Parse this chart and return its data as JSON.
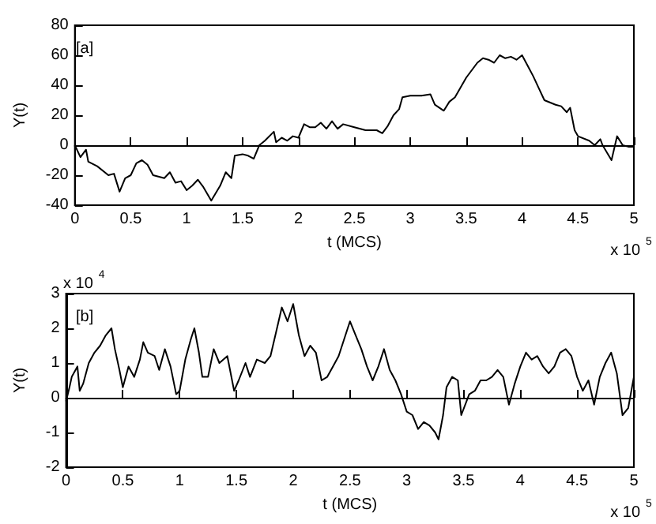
{
  "chart_data": [
    {
      "type": "line",
      "xlabel": "t (MCS)",
      "ylabel": "Y(t)",
      "annotations": [
        "[a]",
        "x 10$^{5}$"
      ],
      "xlim": [
        0,
        5
      ],
      "xticks": [
        0,
        0.5,
        1,
        1.5,
        2,
        2.5,
        3,
        3.5,
        4,
        4.5,
        5
      ],
      "ylim": [
        -40,
        80
      ],
      "yticks": [
        -40,
        -20,
        0,
        20,
        40,
        60,
        80
      ],
      "color": "#000000",
      "x": [
        0,
        0.05,
        0.1,
        0.12,
        0.2,
        0.3,
        0.35,
        0.4,
        0.45,
        0.5,
        0.55,
        0.6,
        0.65,
        0.7,
        0.8,
        0.85,
        0.9,
        0.95,
        1.0,
        1.05,
        1.1,
        1.15,
        1.22,
        1.3,
        1.35,
        1.4,
        1.43,
        1.5,
        1.55,
        1.6,
        1.65,
        1.7,
        1.78,
        1.8,
        1.85,
        1.9,
        1.95,
        2.0,
        2.05,
        2.1,
        2.15,
        2.2,
        2.25,
        2.3,
        2.35,
        2.4,
        2.5,
        2.6,
        2.7,
        2.75,
        2.8,
        2.85,
        2.9,
        2.93,
        3.0,
        3.1,
        3.18,
        3.22,
        3.3,
        3.35,
        3.4,
        3.5,
        3.6,
        3.65,
        3.7,
        3.75,
        3.8,
        3.85,
        3.9,
        3.95,
        4.0,
        4.05,
        4.1,
        4.15,
        4.2,
        4.3,
        4.35,
        4.4,
        4.43,
        4.47,
        4.5,
        4.6,
        4.65,
        4.7,
        4.72,
        4.8,
        4.85,
        4.9,
        4.95,
        5.0
      ],
      "values": [
        0,
        -8,
        -3,
        -11,
        -14,
        -20,
        -19,
        -31,
        -22,
        -20,
        -12,
        -10,
        -13,
        -20,
        -22,
        -18,
        -25,
        -24,
        -30,
        -27,
        -23,
        -28,
        -37,
        -27,
        -18,
        -22,
        -7,
        -6,
        -7,
        -9,
        0,
        3,
        9,
        2,
        5,
        3,
        6,
        5,
        14,
        12,
        12,
        15,
        11,
        16,
        11,
        14,
        12,
        10,
        10,
        8,
        13,
        20,
        24,
        32,
        33,
        33,
        34,
        27,
        23,
        29,
        32,
        45,
        55,
        58,
        57,
        55,
        60,
        58,
        59,
        57,
        60,
        53,
        46,
        38,
        30,
        27,
        26,
        22,
        25,
        10,
        6,
        3,
        0,
        4,
        0,
        -10,
        6,
        0,
        -1,
        -1
      ]
    },
    {
      "type": "line",
      "xlabel": "t (MCS)",
      "ylabel": "Y(t)",
      "annotations": [
        "[b]",
        "x 10$^{4}$",
        "x 10$^{5}$"
      ],
      "xlim": [
        0,
        5
      ],
      "xticks": [
        0,
        0.5,
        1,
        1.5,
        2,
        2.5,
        3,
        3.5,
        4,
        4.5,
        5
      ],
      "ylim": [
        -2,
        3
      ],
      "yticks": [
        -2,
        -1,
        0,
        1,
        2,
        3
      ],
      "color": "#000000",
      "x": [
        0,
        0.03,
        0.05,
        0.1,
        0.12,
        0.15,
        0.2,
        0.25,
        0.3,
        0.35,
        0.4,
        0.43,
        0.47,
        0.5,
        0.55,
        0.6,
        0.65,
        0.68,
        0.72,
        0.78,
        0.82,
        0.87,
        0.92,
        0.97,
        1.0,
        1.05,
        1.1,
        1.13,
        1.17,
        1.2,
        1.25,
        1.3,
        1.35,
        1.42,
        1.48,
        1.52,
        1.58,
        1.62,
        1.68,
        1.75,
        1.8,
        1.85,
        1.9,
        1.95,
        2.0,
        2.05,
        2.1,
        2.15,
        2.2,
        2.25,
        2.3,
        2.35,
        2.4,
        2.45,
        2.5,
        2.55,
        2.6,
        2.65,
        2.7,
        2.75,
        2.8,
        2.85,
        2.9,
        2.95,
        3.0,
        3.05,
        3.1,
        3.15,
        3.2,
        3.25,
        3.28,
        3.32,
        3.35,
        3.4,
        3.45,
        3.48,
        3.55,
        3.6,
        3.65,
        3.7,
        3.75,
        3.8,
        3.85,
        3.9,
        3.95,
        4.0,
        4.05,
        4.1,
        4.15,
        4.2,
        4.25,
        4.3,
        4.35,
        4.4,
        4.45,
        4.5,
        4.55,
        4.6,
        4.65,
        4.7,
        4.75,
        4.8,
        4.85,
        4.9,
        4.95,
        5.0
      ],
      "values": [
        -0.1,
        0.3,
        0.6,
        0.9,
        0.2,
        0.4,
        1.0,
        1.3,
        1.5,
        1.8,
        2.0,
        1.4,
        0.8,
        0.3,
        0.9,
        0.6,
        1.1,
        1.6,
        1.3,
        1.2,
        0.8,
        1.4,
        0.9,
        0.1,
        0.2,
        1.1,
        1.7,
        2.0,
        1.3,
        0.6,
        0.6,
        1.4,
        1.0,
        1.2,
        0.2,
        0.5,
        1.0,
        0.6,
        1.1,
        1.0,
        1.2,
        1.9,
        2.6,
        2.2,
        2.7,
        1.8,
        1.2,
        1.5,
        1.3,
        0.5,
        0.6,
        0.9,
        1.2,
        1.7,
        2.2,
        1.8,
        1.4,
        0.9,
        0.5,
        0.9,
        1.4,
        0.8,
        0.5,
        0.1,
        -0.4,
        -0.5,
        -0.9,
        -0.7,
        -0.8,
        -1.0,
        -1.2,
        -0.5,
        0.3,
        0.6,
        0.5,
        -0.5,
        0.1,
        0.2,
        0.5,
        0.5,
        0.6,
        0.8,
        0.6,
        -0.2,
        0.4,
        0.9,
        1.3,
        1.1,
        1.2,
        0.9,
        0.7,
        0.9,
        1.3,
        1.4,
        1.2,
        0.6,
        0.2,
        0.5,
        -0.2,
        0.6,
        1.0,
        1.3,
        0.7,
        -0.5,
        -0.3,
        0.6
      ]
    }
  ]
}
